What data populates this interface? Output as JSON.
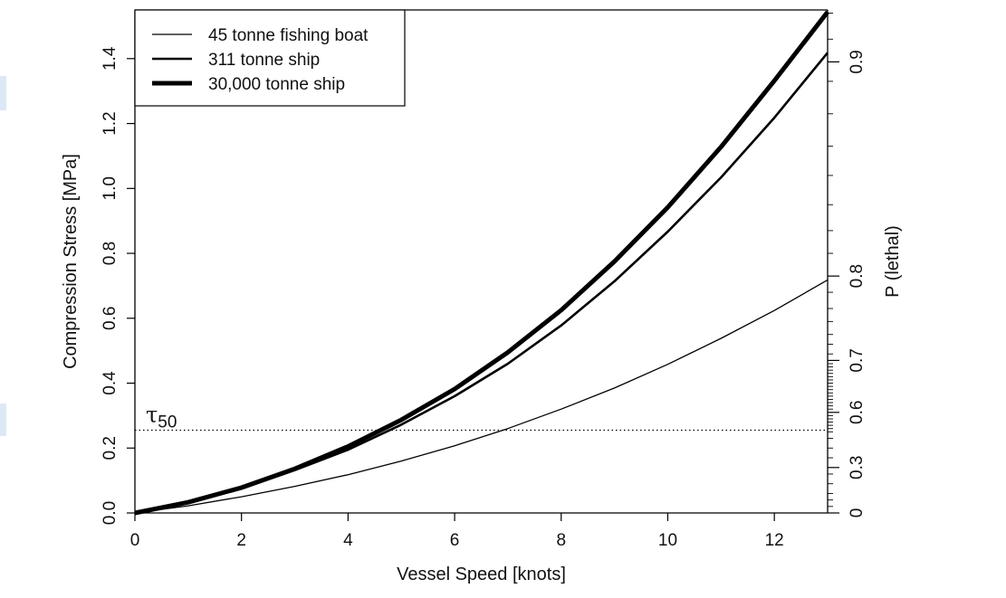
{
  "chart_data": {
    "type": "line",
    "xlabel": "Vessel Speed [knots]",
    "ylabel": "Compression Stress [MPa]",
    "y2label": "P (lethal)",
    "xlim": [
      0,
      13
    ],
    "ylim": [
      0,
      1.55
    ],
    "x_ticks": [
      0,
      2,
      4,
      6,
      8,
      10,
      12
    ],
    "y_ticks": [
      0.0,
      0.2,
      0.4,
      0.6,
      0.8,
      1.0,
      1.2,
      1.4
    ],
    "y_tick_labels": [
      "0.0",
      "0.2",
      "0.4",
      "0.6",
      "0.8",
      "1.0",
      "1.2",
      "1.4"
    ],
    "y2_major_ticks": [
      {
        "stress": 0.0,
        "label": "0"
      },
      {
        "stress": 0.14,
        "label": "0.3"
      },
      {
        "stress": 0.31,
        "label": "0.6"
      },
      {
        "stress": 0.47,
        "label": "0.7"
      },
      {
        "stress": 0.73,
        "label": "0.8"
      },
      {
        "stress": 1.39,
        "label": "0.9"
      }
    ],
    "y2_minor_ticks": [
      0.02,
      0.04,
      0.06,
      0.09,
      0.12,
      0.17,
      0.2,
      0.23,
      0.25,
      0.26,
      0.27,
      0.28,
      0.29,
      0.3,
      0.32,
      0.33,
      0.34,
      0.35,
      0.36,
      0.37,
      0.38,
      0.39,
      0.4,
      0.41,
      0.42,
      0.43,
      0.44,
      0.45,
      0.46,
      0.49,
      0.52,
      0.55,
      0.59,
      0.63,
      0.68,
      0.8,
      0.87,
      0.95,
      1.04,
      1.13,
      1.23,
      1.33,
      1.46,
      1.54
    ],
    "x": [
      0,
      1,
      2,
      3,
      4,
      5,
      6,
      7,
      8,
      9,
      10,
      11,
      12,
      13
    ],
    "series": [
      {
        "name": "45 tonne fishing boat",
        "line_width": 1.3,
        "values": [
          0.0,
          0.022,
          0.05,
          0.082,
          0.118,
          0.16,
          0.207,
          0.26,
          0.32,
          0.385,
          0.458,
          0.538,
          0.624,
          0.718
        ]
      },
      {
        "name": "311 tonne ship",
        "line_width": 2.6,
        "values": [
          0.0,
          0.032,
          0.075,
          0.132,
          0.195,
          0.272,
          0.36,
          0.46,
          0.578,
          0.714,
          0.867,
          1.034,
          1.218,
          1.418
        ]
      },
      {
        "name": "30,000 tonne ship",
        "line_width": 5.0,
        "values": [
          0.0,
          0.033,
          0.078,
          0.136,
          0.205,
          0.287,
          0.382,
          0.495,
          0.625,
          0.775,
          0.942,
          1.128,
          1.332,
          1.544
        ]
      }
    ],
    "threshold": {
      "label": "τ",
      "subscript": "50",
      "value": 0.255,
      "style": "dotted"
    },
    "legend_position": "top-left",
    "grid": false,
    "colors": {
      "line": "#000000",
      "page_edge_marker": "#dde8f6"
    }
  }
}
